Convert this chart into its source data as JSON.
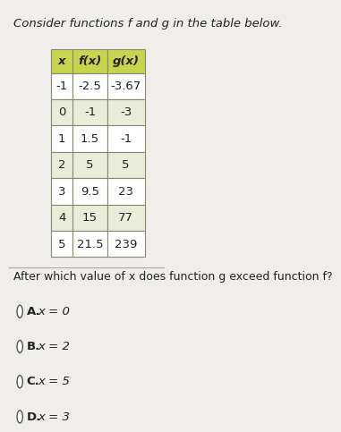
{
  "title": "Consider functions f and g in the table below.",
  "question": "After which value of x does function g exceed function f?",
  "col_headers": [
    "x",
    "f(x)",
    "g(x)"
  ],
  "table_data": [
    [
      "-1",
      "-2.5",
      "-3.67"
    ],
    [
      "0",
      "-1",
      "-3"
    ],
    [
      "1",
      "1.5",
      "-1"
    ],
    [
      "2",
      "5",
      "5"
    ],
    [
      "3",
      "9.5",
      "23"
    ],
    [
      "4",
      "15",
      "77"
    ],
    [
      "5",
      "21.5",
      "239"
    ]
  ],
  "choices": [
    [
      "A.",
      "x = 0"
    ],
    [
      "B.",
      "x = 2"
    ],
    [
      "C.",
      "x = 5"
    ],
    [
      "D.",
      "x = 3"
    ]
  ],
  "header_bg": "#c8d44e",
  "row_bg_even": "#ffffff",
  "row_bg_odd": "#e8ecd8",
  "table_border": "#888870",
  "bg_color": "#f0eeea",
  "text_color": "#222222",
  "title_fontsize": 9.5,
  "question_fontsize": 9.0,
  "choice_fontsize": 9.5,
  "table_fontsize": 9.5
}
